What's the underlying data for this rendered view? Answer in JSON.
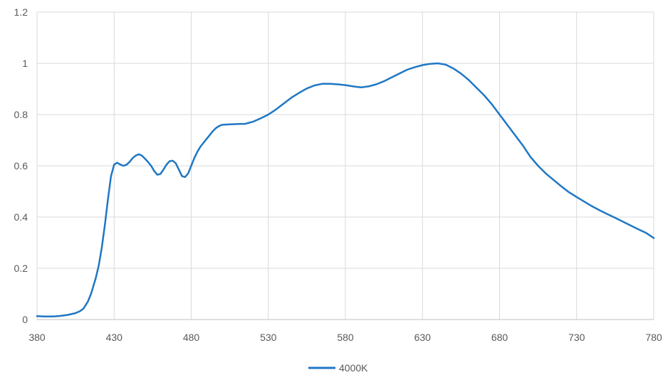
{
  "chart_data": {
    "type": "line",
    "title": "",
    "xlabel": "",
    "ylabel": "",
    "xlim": [
      380,
      780
    ],
    "ylim": [
      0,
      1.2
    ],
    "x_ticks": [
      380,
      430,
      480,
      530,
      580,
      630,
      680,
      730,
      780
    ],
    "y_ticks": [
      0,
      0.2,
      0.4,
      0.6,
      0.8,
      1,
      1.2
    ],
    "grid": true,
    "legend_position": "bottom",
    "colors": {
      "series": "#1f77c4",
      "grid": "#d9d9d9",
      "axis": "#bfbfbf"
    },
    "series": [
      {
        "name": "4000K",
        "x": [
          380,
          385,
          390,
          395,
          400,
          405,
          408,
          410,
          413,
          415,
          418,
          420,
          422,
          424,
          426,
          428,
          430,
          432,
          434,
          436,
          438,
          440,
          442,
          444,
          446,
          448,
          450,
          452,
          454,
          456,
          458,
          460,
          462,
          464,
          466,
          468,
          470,
          472,
          474,
          476,
          478,
          480,
          482,
          484,
          486,
          488,
          490,
          492,
          494,
          496,
          498,
          500,
          505,
          510,
          515,
          520,
          525,
          530,
          535,
          540,
          545,
          550,
          555,
          560,
          565,
          570,
          575,
          580,
          585,
          590,
          595,
          600,
          605,
          610,
          615,
          620,
          625,
          630,
          635,
          640,
          645,
          650,
          655,
          660,
          665,
          670,
          675,
          680,
          685,
          690,
          695,
          700,
          705,
          710,
          715,
          720,
          725,
          730,
          735,
          740,
          745,
          750,
          755,
          760,
          765,
          770,
          775,
          780
        ],
        "values": [
          0.013,
          0.012,
          0.012,
          0.014,
          0.018,
          0.025,
          0.033,
          0.042,
          0.07,
          0.1,
          0.16,
          0.21,
          0.28,
          0.37,
          0.47,
          0.56,
          0.605,
          0.612,
          0.605,
          0.6,
          0.604,
          0.615,
          0.63,
          0.64,
          0.645,
          0.64,
          0.628,
          0.615,
          0.6,
          0.58,
          0.565,
          0.568,
          0.585,
          0.605,
          0.618,
          0.62,
          0.61,
          0.585,
          0.56,
          0.556,
          0.57,
          0.6,
          0.63,
          0.655,
          0.675,
          0.69,
          0.705,
          0.72,
          0.735,
          0.747,
          0.755,
          0.76,
          0.762,
          0.763,
          0.764,
          0.772,
          0.785,
          0.8,
          0.82,
          0.843,
          0.866,
          0.885,
          0.902,
          0.914,
          0.92,
          0.92,
          0.918,
          0.915,
          0.91,
          0.906,
          0.91,
          0.918,
          0.93,
          0.945,
          0.96,
          0.975,
          0.985,
          0.993,
          0.998,
          1.0,
          0.995,
          0.98,
          0.96,
          0.935,
          0.905,
          0.875,
          0.84,
          0.8,
          0.76,
          0.72,
          0.68,
          0.635,
          0.6,
          0.57,
          0.545,
          0.52,
          0.497,
          0.478,
          0.46,
          0.442,
          0.426,
          0.411,
          0.397,
          0.382,
          0.367,
          0.352,
          0.338,
          0.318
        ]
      }
    ]
  }
}
